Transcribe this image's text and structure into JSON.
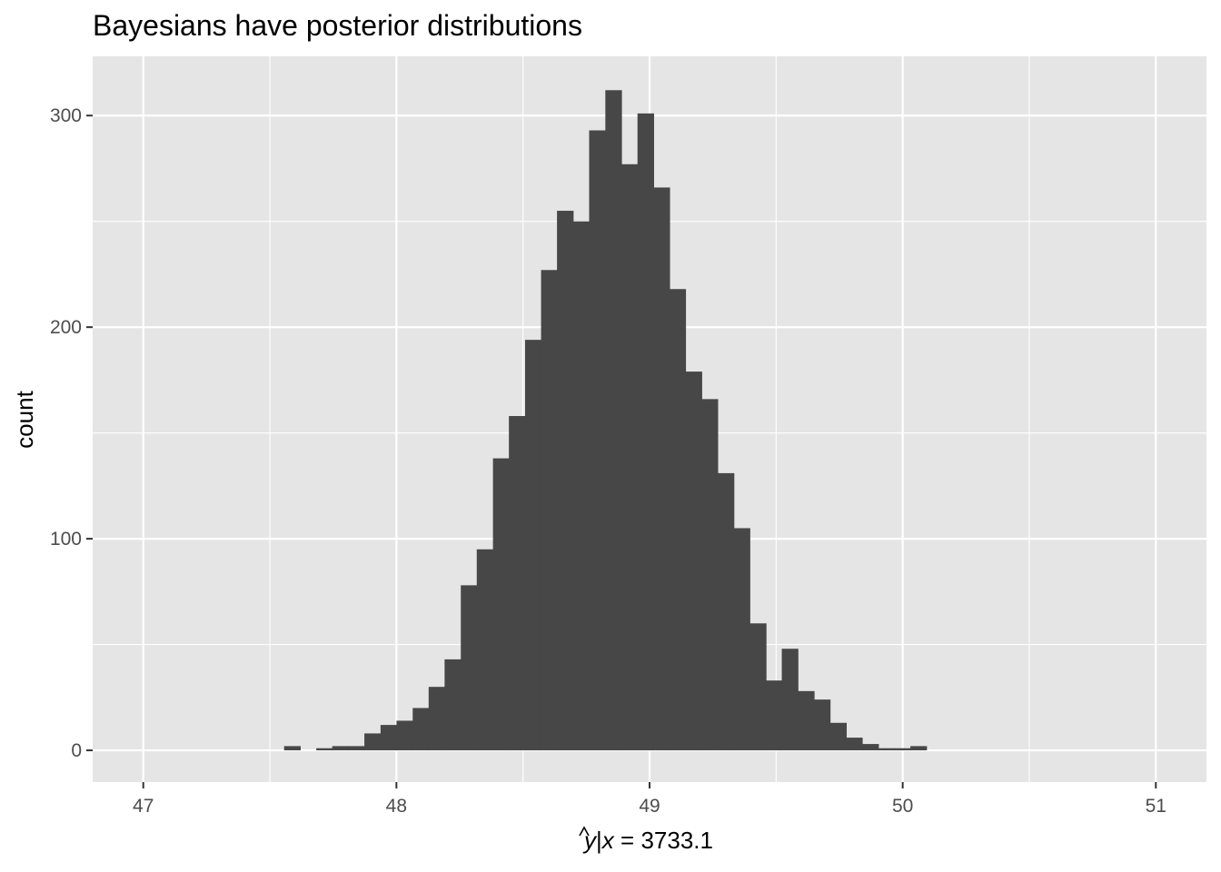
{
  "chart_data": {
    "type": "bar",
    "title": "Bayesians have posterior distributions",
    "xlabel_parts": {
      "var": "y",
      "given": "|",
      "cond": "x",
      "eq": " = ",
      "value": "3733.1"
    },
    "ylabel": "count",
    "xlim": [
      46.8,
      51.2
    ],
    "ylim": [
      -15,
      328
    ],
    "x_ticks": [
      47,
      48,
      49,
      50,
      51
    ],
    "y_ticks": [
      0,
      100,
      200,
      300
    ],
    "bin_width": 0.0634,
    "bins": [
      {
        "x": 47.588,
        "count": 2
      },
      {
        "x": 47.652,
        "count": 0
      },
      {
        "x": 47.715,
        "count": 1
      },
      {
        "x": 47.778,
        "count": 2
      },
      {
        "x": 47.842,
        "count": 2
      },
      {
        "x": 47.905,
        "count": 8
      },
      {
        "x": 47.969,
        "count": 12
      },
      {
        "x": 48.032,
        "count": 14
      },
      {
        "x": 48.096,
        "count": 20
      },
      {
        "x": 48.159,
        "count": 30
      },
      {
        "x": 48.222,
        "count": 43
      },
      {
        "x": 48.286,
        "count": 78
      },
      {
        "x": 48.349,
        "count": 95
      },
      {
        "x": 48.413,
        "count": 138
      },
      {
        "x": 48.476,
        "count": 158
      },
      {
        "x": 48.54,
        "count": 194
      },
      {
        "x": 48.603,
        "count": 227
      },
      {
        "x": 48.666,
        "count": 255
      },
      {
        "x": 48.73,
        "count": 250
      },
      {
        "x": 48.793,
        "count": 293
      },
      {
        "x": 48.857,
        "count": 312
      },
      {
        "x": 48.92,
        "count": 277
      },
      {
        "x": 48.984,
        "count": 301
      },
      {
        "x": 49.047,
        "count": 266
      },
      {
        "x": 49.11,
        "count": 218
      },
      {
        "x": 49.174,
        "count": 179
      },
      {
        "x": 49.237,
        "count": 166
      },
      {
        "x": 49.301,
        "count": 131
      },
      {
        "x": 49.364,
        "count": 105
      },
      {
        "x": 49.428,
        "count": 60
      },
      {
        "x": 49.491,
        "count": 33
      },
      {
        "x": 49.554,
        "count": 48
      },
      {
        "x": 49.618,
        "count": 28
      },
      {
        "x": 49.681,
        "count": 24
      },
      {
        "x": 49.745,
        "count": 13
      },
      {
        "x": 49.808,
        "count": 6
      },
      {
        "x": 49.872,
        "count": 3
      },
      {
        "x": 49.935,
        "count": 1
      },
      {
        "x": 49.998,
        "count": 1
      },
      {
        "x": 50.062,
        "count": 2
      }
    ],
    "colors": {
      "panel": "#e5e5e5",
      "grid": "#ffffff",
      "bar": "#474747",
      "tick_text": "#4d4d4d",
      "tick_mark": "#333333"
    },
    "grid": true
  }
}
